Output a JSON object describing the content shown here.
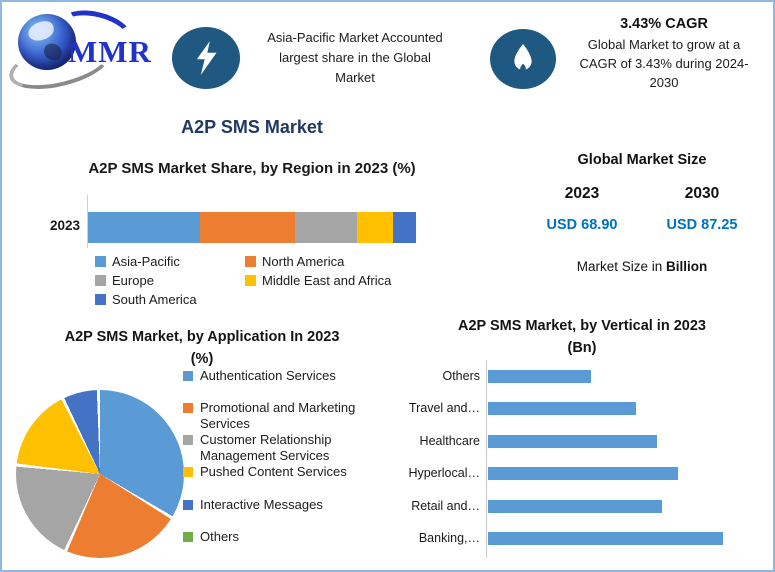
{
  "header": {
    "logo_text": "MMR",
    "callout1": {
      "line1": "Asia-Pacific Market Accounted",
      "line2": "largest share in the Global",
      "line3": "Market"
    },
    "callout2": {
      "title": "3.43% CAGR",
      "line1": "Global Market to grow at a",
      "line2": "CAGR of 3.43% during 2024-",
      "line3": "2030"
    }
  },
  "page_title": "A2P SMS Market",
  "region_chart": {
    "title": "A2P SMS Market Share, by Region in 2023 (%)",
    "year_label": "2023"
  },
  "market_size": {
    "heading": "Global Market Size",
    "year1": "2023",
    "year2": "2030",
    "value1": "USD 68.90",
    "value2": "USD 87.25",
    "note_prefix": "Market Size in ",
    "note_bold": "Billion"
  },
  "application_chart": {
    "title_line1": "A2P SMS Market, by Application In 2023",
    "title_line2": "(%)"
  },
  "vertical_chart": {
    "title_line1": "A2P SMS Market, by Vertical in 2023",
    "title_line2": "(Bn)"
  },
  "colors": {
    "accent_navy_title": "#1F3864",
    "usd_value_blue": "#0070C0",
    "icon_circle_blue": "#1F5880",
    "frame_border_blue": "#8FB7DF",
    "logo_blue": "#2233cc"
  },
  "chart_data": [
    {
      "type": "bar",
      "subtype": "stacked-horizontal",
      "title": "A2P SMS Market Share, by Region in 2023 (%)",
      "categories": [
        "2023"
      ],
      "series": [
        {
          "name": "Asia-Pacific",
          "color": "#5B9BD5",
          "values": [
            34
          ]
        },
        {
          "name": "North America",
          "color": "#ED7D31",
          "values": [
            29
          ]
        },
        {
          "name": "Europe",
          "color": "#A5A5A5",
          "values": [
            19
          ]
        },
        {
          "name": "Middle East and Africa",
          "color": "#FFC000",
          "values": [
            11
          ]
        },
        {
          "name": "South America",
          "color": "#4472C4",
          "values": [
            7
          ]
        }
      ],
      "xlim": [
        0,
        100
      ],
      "unit": "%",
      "legend_position": "bottom",
      "note": "segment sizes estimated from bar segment widths"
    },
    {
      "type": "pie",
      "title": "A2P SMS Market, by Application In 2023 (%)",
      "labels": [
        "Authentication Services",
        "Promotional and Marketing Services",
        "Customer Relationship Management Services",
        "Pushed Content Services",
        "Interactive Messages",
        "Others"
      ],
      "values": [
        34,
        23,
        20,
        16,
        7,
        0
      ],
      "colors": [
        "#5B9BD5",
        "#ED7D31",
        "#A5A5A5",
        "#FFC000",
        "#4472C4",
        "#70AD47"
      ],
      "legend_position": "right",
      "start_angle_deg": 0,
      "note": "values estimated from slice angles; Others slice is negligible/not visible"
    },
    {
      "type": "bar",
      "subtype": "horizontal",
      "title": "A2P SMS Market, by Vertical in 2023 (Bn)",
      "categories": [
        "Others",
        "Travel and…",
        "Healthcare",
        "Hyperlocal…",
        "Retail and…",
        "Banking,…"
      ],
      "values": [
        44,
        63,
        72,
        81,
        74,
        100
      ],
      "bar_color": "#5B9BD5",
      "value_axis": "no tick labels shown; values are relative bar lengths as % of the longest bar",
      "grid": false
    }
  ]
}
